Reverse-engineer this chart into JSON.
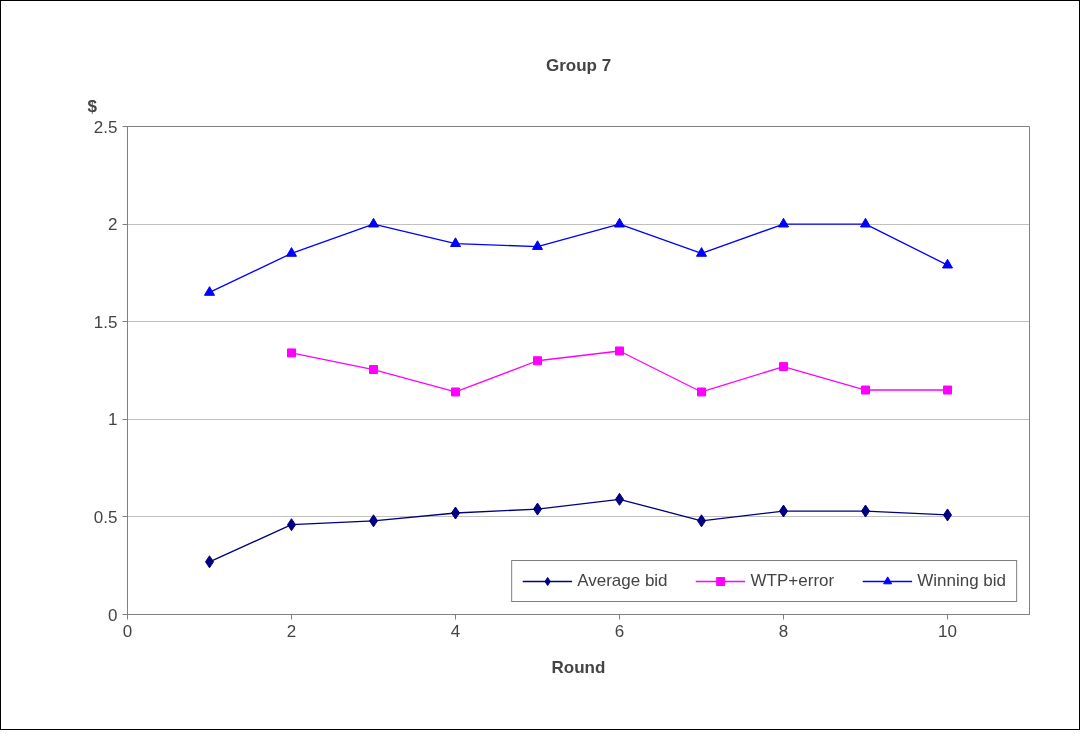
{
  "chart_data": {
    "type": "line",
    "title": "Group 7",
    "ylabel": "$",
    "xlabel": "Round",
    "x": [
      1,
      2,
      3,
      4,
      5,
      6,
      7,
      8,
      9,
      10
    ],
    "series": [
      {
        "name": "Average bid",
        "color": "#000080",
        "marker": "diamond",
        "values": [
          0.27,
          0.46,
          0.48,
          0.52,
          0.54,
          0.59,
          0.48,
          0.53,
          0.53,
          0.51
        ]
      },
      {
        "name": "WTP+error",
        "color": "#ff00ff",
        "marker": "square",
        "values": [
          null,
          1.34,
          1.255,
          1.14,
          1.3,
          1.35,
          1.14,
          1.27,
          1.15,
          1.15
        ]
      },
      {
        "name": "Winning bid",
        "color": "#0000ff",
        "marker": "triangle",
        "values": [
          1.65,
          1.85,
          2.0,
          1.9,
          1.885,
          2.0,
          1.85,
          2.0,
          2.0,
          1.79
        ]
      }
    ],
    "xlim": [
      0,
      11
    ],
    "xticks": [
      0,
      2,
      4,
      6,
      8,
      10
    ],
    "ylim": [
      0,
      2.5
    ],
    "yticks": [
      0,
      0.5,
      1,
      1.5,
      2,
      2.5
    ],
    "grid": "y",
    "legend": "bottom right",
    "line_style": "solid"
  }
}
